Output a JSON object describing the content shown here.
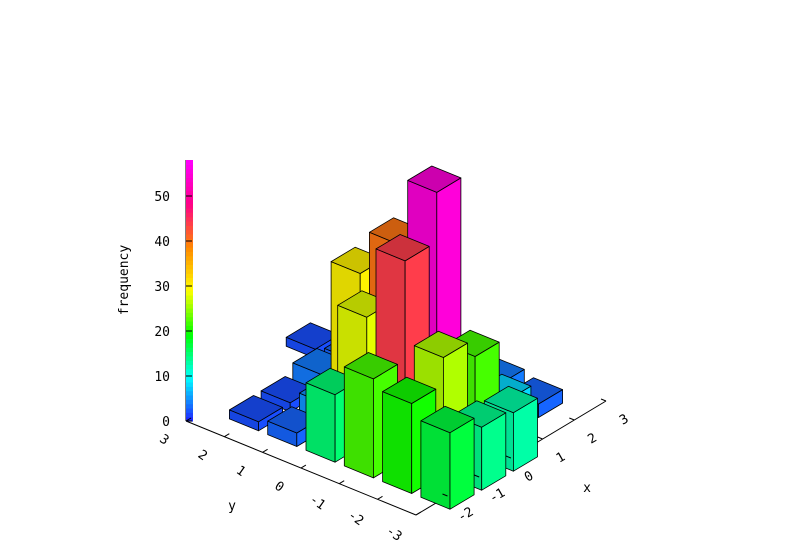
{
  "chart_data": {
    "type": "bar3d",
    "xlabel": "x",
    "ylabel": "y",
    "zlabel": "frequency",
    "x_ticks": [
      "-2",
      "-1",
      "0",
      "1",
      "2",
      "3"
    ],
    "y_ticks": [
      "-3",
      "-2",
      "-1",
      "0",
      "1",
      "2",
      "3"
    ],
    "z_ticks": [
      "0",
      "10",
      "20",
      "30",
      "40",
      "50"
    ],
    "x_range": [
      -3,
      3
    ],
    "y_range": [
      -3,
      3
    ],
    "z_range": [
      0,
      58
    ],
    "colorbar_range": [
      0,
      58
    ],
    "palette": [
      "#2020ff",
      "#00ffff",
      "#00ff00",
      "#ffff00",
      "#ff8800",
      "#ff0088",
      "#ff00ff"
    ],
    "bins": [
      {
        "x": -2,
        "y": 2,
        "z": 2
      },
      {
        "x": -2,
        "y": 1,
        "z": 3
      },
      {
        "x": -1,
        "y": 2,
        "z": 2
      },
      {
        "x": -1,
        "y": 1,
        "z": 5
      },
      {
        "x": 0,
        "y": 2,
        "z": 4
      },
      {
        "x": 1,
        "y": 2,
        "z": 3
      },
      {
        "x": 2,
        "y": 2,
        "z": 1
      },
      {
        "x": 2,
        "y": 1,
        "z": 3
      },
      {
        "x": 2,
        "y": 0,
        "z": 4
      },
      {
        "x": 2,
        "y": -1,
        "z": 4
      },
      {
        "x": 2,
        "y": -2,
        "z": 3
      },
      {
        "x": 1,
        "y": 1,
        "z": 13
      },
      {
        "x": 1,
        "y": 0,
        "z": 12
      },
      {
        "x": 1,
        "y": -1,
        "z": 10
      },
      {
        "x": 1,
        "y": -2,
        "z": 8
      },
      {
        "x": 0,
        "y": 1,
        "z": 30
      },
      {
        "x": -1,
        "y": 0,
        "z": 28
      },
      {
        "x": 0,
        "y": 0,
        "z": 40
      },
      {
        "x": -1,
        "y": -1,
        "z": 44
      },
      {
        "x": 0,
        "y": -1,
        "z": 55
      },
      {
        "x": 1,
        "y": 3,
        "z": 2
      },
      {
        "x": 0,
        "y": -2,
        "z": 22
      },
      {
        "x": -2,
        "y": 0,
        "z": 15
      },
      {
        "x": -1,
        "y": -2,
        "z": 26
      },
      {
        "x": -2,
        "y": -1,
        "z": 22
      },
      {
        "x": -2,
        "y": -2,
        "z": 20
      },
      {
        "x": -1,
        "y": -3,
        "z": 14
      },
      {
        "x": 0,
        "y": -3,
        "z": 13
      },
      {
        "x": -2,
        "y": -3,
        "z": 17
      }
    ]
  }
}
